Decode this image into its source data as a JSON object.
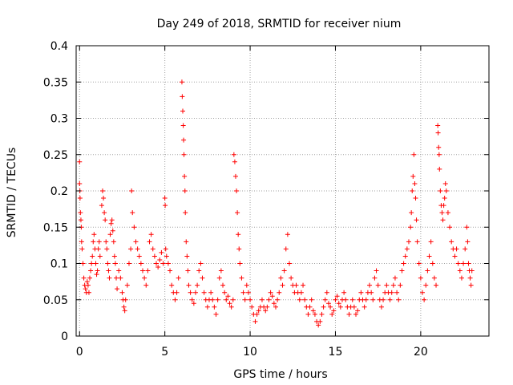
{
  "chart_data": {
    "type": "scatter",
    "title": "Day 249 of 2018, SRMTID for receiver nium",
    "xlabel": "GPS time / hours",
    "ylabel": "SRMTID / TECUs",
    "xlim": [
      -0.2,
      24
    ],
    "ylim": [
      0,
      0.4
    ],
    "x_ticks": [
      0,
      5,
      10,
      15,
      20
    ],
    "x_tick_labels": [
      "0",
      "5",
      "10",
      "15",
      "20"
    ],
    "y_ticks": [
      0,
      0.05,
      0.1,
      0.15,
      0.2,
      0.25,
      0.3,
      0.35,
      0.4
    ],
    "y_tick_labels": [
      "0",
      "0.05",
      "0.1",
      "0.15",
      "0.2",
      "0.25",
      "0.3",
      "0.35",
      "0.4"
    ],
    "grid": true,
    "marker": "+",
    "color": "#ff0000",
    "series": [
      {
        "name": "SRMTID",
        "points": [
          [
            0.0,
            0.24
          ],
          [
            0.0,
            0.21
          ],
          [
            0.02,
            0.2
          ],
          [
            0.03,
            0.19
          ],
          [
            0.05,
            0.17
          ],
          [
            0.08,
            0.16
          ],
          [
            0.1,
            0.15
          ],
          [
            0.12,
            0.13
          ],
          [
            0.15,
            0.12
          ],
          [
            0.2,
            0.1
          ],
          [
            0.25,
            0.08
          ],
          [
            0.3,
            0.07
          ],
          [
            0.35,
            0.065
          ],
          [
            0.4,
            0.06
          ],
          [
            0.45,
            0.075
          ],
          [
            0.5,
            0.07
          ],
          [
            0.55,
            0.06
          ],
          [
            0.6,
            0.08
          ],
          [
            0.65,
            0.09
          ],
          [
            0.7,
            0.1
          ],
          [
            0.75,
            0.11
          ],
          [
            0.8,
            0.13
          ],
          [
            0.85,
            0.14
          ],
          [
            0.9,
            0.12
          ],
          [
            0.95,
            0.1
          ],
          [
            1.0,
            0.085
          ],
          [
            1.05,
            0.09
          ],
          [
            1.1,
            0.12
          ],
          [
            1.15,
            0.13
          ],
          [
            1.2,
            0.11
          ],
          [
            1.3,
            0.18
          ],
          [
            1.35,
            0.2
          ],
          [
            1.4,
            0.19
          ],
          [
            1.45,
            0.17
          ],
          [
            1.5,
            0.16
          ],
          [
            1.55,
            0.13
          ],
          [
            1.6,
            0.12
          ],
          [
            1.65,
            0.1
          ],
          [
            1.7,
            0.09
          ],
          [
            1.75,
            0.08
          ],
          [
            1.8,
            0.14
          ],
          [
            1.85,
            0.155
          ],
          [
            1.9,
            0.16
          ],
          [
            1.95,
            0.145
          ],
          [
            2.0,
            0.13
          ],
          [
            2.05,
            0.11
          ],
          [
            2.1,
            0.1
          ],
          [
            2.15,
            0.08
          ],
          [
            2.2,
            0.065
          ],
          [
            2.3,
            0.09
          ],
          [
            2.4,
            0.08
          ],
          [
            2.5,
            0.06
          ],
          [
            2.55,
            0.05
          ],
          [
            2.6,
            0.04
          ],
          [
            2.65,
            0.035
          ],
          [
            2.7,
            0.05
          ],
          [
            2.8,
            0.07
          ],
          [
            2.9,
            0.1
          ],
          [
            3.0,
            0.12
          ],
          [
            3.05,
            0.2
          ],
          [
            3.1,
            0.17
          ],
          [
            3.2,
            0.15
          ],
          [
            3.3,
            0.13
          ],
          [
            3.4,
            0.12
          ],
          [
            3.5,
            0.11
          ],
          [
            3.6,
            0.1
          ],
          [
            3.7,
            0.09
          ],
          [
            3.8,
            0.08
          ],
          [
            3.9,
            0.07
          ],
          [
            4.0,
            0.09
          ],
          [
            4.1,
            0.13
          ],
          [
            4.2,
            0.14
          ],
          [
            4.3,
            0.12
          ],
          [
            4.4,
            0.11
          ],
          [
            4.5,
            0.1
          ],
          [
            4.6,
            0.095
          ],
          [
            4.7,
            0.105
          ],
          [
            4.8,
            0.115
          ],
          [
            4.9,
            0.1
          ],
          [
            5.0,
            0.19
          ],
          [
            5.02,
            0.18
          ],
          [
            5.05,
            0.12
          ],
          [
            5.1,
            0.11
          ],
          [
            5.2,
            0.1
          ],
          [
            5.3,
            0.09
          ],
          [
            5.4,
            0.07
          ],
          [
            5.5,
            0.06
          ],
          [
            5.6,
            0.05
          ],
          [
            5.7,
            0.06
          ],
          [
            5.8,
            0.08
          ],
          [
            6.0,
            0.35
          ],
          [
            6.02,
            0.33
          ],
          [
            6.05,
            0.31
          ],
          [
            6.08,
            0.29
          ],
          [
            6.1,
            0.27
          ],
          [
            6.12,
            0.25
          ],
          [
            6.15,
            0.22
          ],
          [
            6.18,
            0.2
          ],
          [
            6.2,
            0.17
          ],
          [
            6.25,
            0.13
          ],
          [
            6.3,
            0.11
          ],
          [
            6.35,
            0.09
          ],
          [
            6.4,
            0.07
          ],
          [
            6.5,
            0.06
          ],
          [
            6.6,
            0.05
          ],
          [
            6.7,
            0.045
          ],
          [
            6.8,
            0.06
          ],
          [
            6.9,
            0.07
          ],
          [
            7.0,
            0.09
          ],
          [
            7.1,
            0.1
          ],
          [
            7.2,
            0.08
          ],
          [
            7.3,
            0.06
          ],
          [
            7.4,
            0.05
          ],
          [
            7.5,
            0.04
          ],
          [
            7.6,
            0.05
          ],
          [
            7.7,
            0.06
          ],
          [
            7.8,
            0.05
          ],
          [
            7.9,
            0.04
          ],
          [
            8.0,
            0.03
          ],
          [
            8.1,
            0.05
          ],
          [
            8.2,
            0.08
          ],
          [
            8.3,
            0.09
          ],
          [
            8.4,
            0.07
          ],
          [
            8.5,
            0.06
          ],
          [
            8.6,
            0.05
          ],
          [
            8.7,
            0.055
          ],
          [
            8.8,
            0.045
          ],
          [
            8.9,
            0.04
          ],
          [
            9.0,
            0.05
          ],
          [
            9.05,
            0.25
          ],
          [
            9.1,
            0.24
          ],
          [
            9.15,
            0.22
          ],
          [
            9.2,
            0.2
          ],
          [
            9.25,
            0.17
          ],
          [
            9.3,
            0.14
          ],
          [
            9.35,
            0.12
          ],
          [
            9.4,
            0.1
          ],
          [
            9.5,
            0.08
          ],
          [
            9.6,
            0.06
          ],
          [
            9.7,
            0.05
          ],
          [
            9.8,
            0.07
          ],
          [
            9.9,
            0.06
          ],
          [
            10.0,
            0.05
          ],
          [
            10.1,
            0.04
          ],
          [
            10.2,
            0.03
          ],
          [
            10.3,
            0.02
          ],
          [
            10.4,
            0.03
          ],
          [
            10.5,
            0.035
          ],
          [
            10.6,
            0.04
          ],
          [
            10.7,
            0.05
          ],
          [
            10.8,
            0.04
          ],
          [
            10.9,
            0.035
          ],
          [
            11.0,
            0.04
          ],
          [
            11.1,
            0.05
          ],
          [
            11.2,
            0.06
          ],
          [
            11.3,
            0.055
          ],
          [
            11.4,
            0.045
          ],
          [
            11.5,
            0.04
          ],
          [
            11.6,
            0.05
          ],
          [
            11.7,
            0.06
          ],
          [
            11.8,
            0.08
          ],
          [
            11.9,
            0.07
          ],
          [
            12.0,
            0.09
          ],
          [
            12.1,
            0.12
          ],
          [
            12.2,
            0.14
          ],
          [
            12.3,
            0.1
          ],
          [
            12.4,
            0.08
          ],
          [
            12.5,
            0.07
          ],
          [
            12.6,
            0.06
          ],
          [
            12.7,
            0.07
          ],
          [
            12.8,
            0.06
          ],
          [
            12.9,
            0.05
          ],
          [
            13.0,
            0.06
          ],
          [
            13.1,
            0.07
          ],
          [
            13.2,
            0.05
          ],
          [
            13.3,
            0.04
          ],
          [
            13.4,
            0.03
          ],
          [
            13.5,
            0.04
          ],
          [
            13.6,
            0.05
          ],
          [
            13.7,
            0.035
          ],
          [
            13.8,
            0.03
          ],
          [
            13.9,
            0.02
          ],
          [
            14.0,
            0.015
          ],
          [
            14.1,
            0.02
          ],
          [
            14.2,
            0.03
          ],
          [
            14.3,
            0.04
          ],
          [
            14.4,
            0.05
          ],
          [
            14.5,
            0.06
          ],
          [
            14.6,
            0.045
          ],
          [
            14.7,
            0.04
          ],
          [
            14.8,
            0.03
          ],
          [
            14.9,
            0.035
          ],
          [
            15.0,
            0.05
          ],
          [
            15.1,
            0.055
          ],
          [
            15.2,
            0.045
          ],
          [
            15.3,
            0.04
          ],
          [
            15.4,
            0.05
          ],
          [
            15.5,
            0.06
          ],
          [
            15.6,
            0.05
          ],
          [
            15.7,
            0.04
          ],
          [
            15.8,
            0.03
          ],
          [
            15.9,
            0.04
          ],
          [
            16.0,
            0.05
          ],
          [
            16.1,
            0.04
          ],
          [
            16.2,
            0.03
          ],
          [
            16.3,
            0.035
          ],
          [
            16.4,
            0.05
          ],
          [
            16.5,
            0.06
          ],
          [
            16.6,
            0.05
          ],
          [
            16.7,
            0.04
          ],
          [
            16.8,
            0.05
          ],
          [
            16.9,
            0.06
          ],
          [
            17.0,
            0.07
          ],
          [
            17.1,
            0.06
          ],
          [
            17.2,
            0.05
          ],
          [
            17.3,
            0.08
          ],
          [
            17.4,
            0.09
          ],
          [
            17.5,
            0.07
          ],
          [
            17.6,
            0.05
          ],
          [
            17.7,
            0.04
          ],
          [
            17.8,
            0.05
          ],
          [
            17.9,
            0.06
          ],
          [
            18.0,
            0.07
          ],
          [
            18.1,
            0.06
          ],
          [
            18.2,
            0.05
          ],
          [
            18.3,
            0.06
          ],
          [
            18.4,
            0.07
          ],
          [
            18.5,
            0.08
          ],
          [
            18.6,
            0.06
          ],
          [
            18.7,
            0.05
          ],
          [
            18.8,
            0.07
          ],
          [
            18.9,
            0.09
          ],
          [
            19.0,
            0.1
          ],
          [
            19.1,
            0.11
          ],
          [
            19.2,
            0.12
          ],
          [
            19.3,
            0.13
          ],
          [
            19.4,
            0.15
          ],
          [
            19.45,
            0.17
          ],
          [
            19.5,
            0.2
          ],
          [
            19.55,
            0.22
          ],
          [
            19.6,
            0.25
          ],
          [
            19.65,
            0.21
          ],
          [
            19.7,
            0.19
          ],
          [
            19.75,
            0.16
          ],
          [
            19.8,
            0.13
          ],
          [
            19.9,
            0.1
          ],
          [
            20.0,
            0.08
          ],
          [
            20.1,
            0.06
          ],
          [
            20.2,
            0.05
          ],
          [
            20.3,
            0.07
          ],
          [
            20.4,
            0.09
          ],
          [
            20.5,
            0.11
          ],
          [
            20.6,
            0.13
          ],
          [
            20.7,
            0.1
          ],
          [
            20.8,
            0.08
          ],
          [
            20.9,
            0.07
          ],
          [
            21.0,
            0.29
          ],
          [
            21.02,
            0.28
          ],
          [
            21.05,
            0.26
          ],
          [
            21.08,
            0.25
          ],
          [
            21.1,
            0.23
          ],
          [
            21.15,
            0.2
          ],
          [
            21.2,
            0.18
          ],
          [
            21.25,
            0.17
          ],
          [
            21.3,
            0.16
          ],
          [
            21.35,
            0.18
          ],
          [
            21.4,
            0.19
          ],
          [
            21.45,
            0.21
          ],
          [
            21.5,
            0.2
          ],
          [
            21.6,
            0.17
          ],
          [
            21.7,
            0.15
          ],
          [
            21.8,
            0.13
          ],
          [
            21.9,
            0.12
          ],
          [
            22.0,
            0.11
          ],
          [
            22.1,
            0.12
          ],
          [
            22.2,
            0.1
          ],
          [
            22.3,
            0.09
          ],
          [
            22.4,
            0.08
          ],
          [
            22.5,
            0.1
          ],
          [
            22.6,
            0.12
          ],
          [
            22.7,
            0.15
          ],
          [
            22.75,
            0.13
          ],
          [
            22.8,
            0.1
          ],
          [
            22.85,
            0.09
          ],
          [
            22.9,
            0.08
          ],
          [
            22.95,
            0.07
          ],
          [
            23.0,
            0.09
          ]
        ]
      }
    ]
  }
}
